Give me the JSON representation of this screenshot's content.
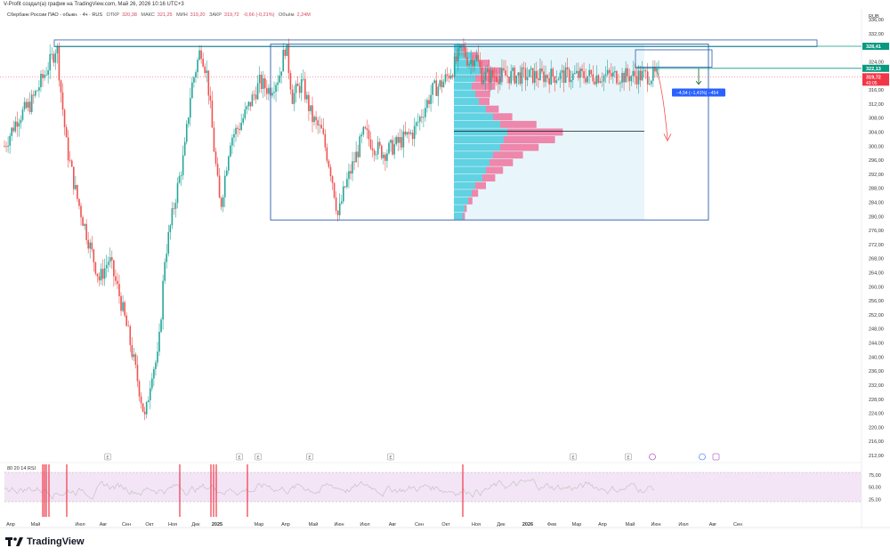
{
  "header": {
    "caption": "V-Profit создал(а) график на TradingView.com, Май 26, 2026 10:16 UTC+3",
    "symbol": "Сбербанк России ПАО - обыкн. · 4ч · RUS",
    "open_label": "ОТКР",
    "open_value": "320,38",
    "high_label": "МАКС",
    "high_value": "321,25",
    "low_label": "МИН",
    "low_value": "319,20",
    "close_label": "ЗАКР",
    "close_value": "319,72",
    "change": "-0,66 (-0,21%)",
    "volume_label": "Объём",
    "volume_value": "2,24M",
    "currency": "RUB"
  },
  "colors": {
    "up": "#26a69a",
    "down": "#ef5350",
    "box": "#2a5caa",
    "upper_line": "#089981",
    "price_tag": "#f23645",
    "profile_bg": "#e8f6fb",
    "profile_up": "#33c5d9",
    "profile_down": "#f06292",
    "rsi_bg": "#f3e5f5",
    "rsi_line": "#bdbdbd",
    "measure": "#2962ff"
  },
  "chart_data": {
    "type": "candlestick",
    "y_axis": {
      "min": 212,
      "max": 336,
      "step": 4,
      "tick_labels": [
        "336,00",
        "332,00",
        "328,41",
        "324,00",
        "322,13",
        "319,72",
        "316,00",
        "312,00",
        "308,00",
        "304,00",
        "300,00",
        "296,00",
        "292,00",
        "288,00",
        "284,00",
        "280,00",
        "276,00",
        "272,00",
        "268,00",
        "264,00",
        "260,00",
        "256,00",
        "252,00",
        "248,00",
        "244,00",
        "240,00",
        "236,00",
        "232,00",
        "228,00",
        "224,00",
        "220,00",
        "216,00",
        "212,00"
      ]
    },
    "x_axis": {
      "labels": [
        "Апр",
        "Май",
        "Июл",
        "Авг",
        "Сен",
        "Окт",
        "Ноя",
        "Дек",
        "2025",
        "Мар",
        "Апр",
        "Май",
        "Июн",
        "Июл",
        "Авг",
        "Сен",
        "Окт",
        "Ноя",
        "Дек",
        "2026",
        "Фев",
        "Мар",
        "Апр",
        "Май",
        "Июн",
        "Июл",
        "Авг",
        "Сен"
      ]
    },
    "price_path": [
      [
        0,
        300
      ],
      [
        0.02,
        308
      ],
      [
        0.04,
        312
      ],
      [
        0.06,
        320
      ],
      [
        0.075,
        326
      ],
      [
        0.08,
        329
      ],
      [
        0.085,
        318
      ],
      [
        0.095,
        300
      ],
      [
        0.11,
        286
      ],
      [
        0.13,
        272
      ],
      [
        0.145,
        262
      ],
      [
        0.16,
        268
      ],
      [
        0.175,
        258
      ],
      [
        0.19,
        246
      ],
      [
        0.205,
        232
      ],
      [
        0.215,
        222
      ],
      [
        0.225,
        236
      ],
      [
        0.235,
        240
      ],
      [
        0.245,
        268
      ],
      [
        0.26,
        284
      ],
      [
        0.275,
        298
      ],
      [
        0.285,
        316
      ],
      [
        0.3,
        328
      ],
      [
        0.31,
        320
      ],
      [
        0.32,
        300
      ],
      [
        0.33,
        282
      ],
      [
        0.345,
        302
      ],
      [
        0.36,
        306
      ],
      [
        0.375,
        312
      ],
      [
        0.39,
        318
      ],
      [
        0.405,
        316
      ],
      [
        0.42,
        320
      ],
      [
        0.43,
        329
      ],
      [
        0.44,
        314
      ],
      [
        0.455,
        318
      ],
      [
        0.47,
        308
      ],
      [
        0.485,
        304
      ],
      [
        0.5,
        292
      ],
      [
        0.51,
        280
      ],
      [
        0.52,
        288
      ],
      [
        0.535,
        296
      ],
      [
        0.55,
        304
      ],
      [
        0.565,
        300
      ],
      [
        0.58,
        298
      ],
      [
        0.595,
        300
      ],
      [
        0.61,
        302
      ],
      [
        0.625,
        304
      ],
      [
        0.64,
        310
      ],
      [
        0.655,
        316
      ],
      [
        0.67,
        318
      ],
      [
        0.685,
        322
      ],
      [
        0.7,
        328
      ],
      [
        0.71,
        324
      ],
      [
        0.72,
        326
      ],
      [
        0.73,
        320
      ]
    ],
    "levels": [
      {
        "name": "upper-zone",
        "value": 328.41,
        "label": "328,41"
      },
      {
        "name": "mid-level",
        "value": 322.13,
        "label": "322,13"
      },
      {
        "name": "poc-line",
        "value": 304.2
      }
    ],
    "last_price": {
      "value": 319.72,
      "label": "319,72",
      "countdown": "43:05"
    },
    "measure": {
      "label": "−4,54 (−1,41%) −454",
      "change": -4.54,
      "change_pct": -1.41
    },
    "rsi": {
      "label": "80 20 14 RSI",
      "upper": 80,
      "lower": 20,
      "length": 14,
      "tick_labels": [
        "75,00",
        "50,00",
        "25,00"
      ]
    },
    "volume_profile_rows": [
      [
        0.05,
        0.02
      ],
      [
        0.1,
        0.06
      ],
      [
        0.14,
        0.1
      ],
      [
        0.16,
        0.18
      ],
      [
        0.12,
        0.26
      ],
      [
        0.1,
        0.22
      ],
      [
        0.12,
        0.14
      ],
      [
        0.14,
        0.1
      ],
      [
        0.18,
        0.12
      ],
      [
        0.22,
        0.18
      ],
      [
        0.26,
        0.34
      ],
      [
        0.3,
        0.52
      ],
      [
        0.28,
        0.48
      ],
      [
        0.26,
        0.36
      ],
      [
        0.22,
        0.28
      ],
      [
        0.2,
        0.22
      ],
      [
        0.18,
        0.16
      ],
      [
        0.16,
        0.12
      ],
      [
        0.12,
        0.1
      ],
      [
        0.1,
        0.06
      ],
      [
        0.08,
        0.04
      ],
      [
        0.06,
        0.02
      ],
      [
        0.05,
        0.02
      ]
    ]
  },
  "footer": {
    "brand": "TradingView"
  }
}
